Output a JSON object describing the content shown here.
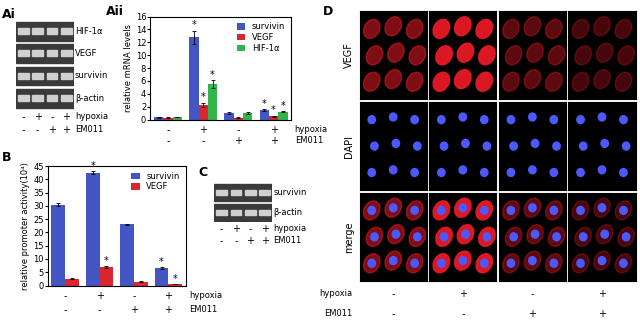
{
  "chart_data": [
    {
      "type": "bar",
      "title": "Aii",
      "categories": [
        null,
        null,
        null,
        null
      ],
      "conditions": [
        {
          "name": "hypoxia",
          "values": [
            "-",
            "+",
            "-",
            "+"
          ]
        },
        {
          "name": "EM011",
          "values": [
            "-",
            "-",
            "+",
            "+"
          ]
        }
      ],
      "y_label": "relative mRNA levels",
      "ylim": [
        0,
        16
      ],
      "yticks": [
        0,
        2,
        4,
        6,
        8,
        10,
        12,
        14,
        16
      ],
      "legend": "upper right",
      "series": [
        {
          "name": "survivin",
          "color": "#4455c4",
          "values": [
            0.35,
            12.8,
            1.0,
            1.5
          ],
          "errors": [
            0.05,
            1.0,
            0.1,
            0.15
          ]
        },
        {
          "name": "VEGF",
          "color": "#d9262f",
          "values": [
            0.3,
            2.3,
            0.3,
            0.5
          ],
          "errors": [
            0.05,
            0.3,
            0.05,
            0.1
          ]
        },
        {
          "name": "HIF-1α",
          "color": "#33b44a",
          "values": [
            0.4,
            5.5,
            1.0,
            1.2
          ],
          "errors": [
            0.05,
            0.6,
            0.1,
            0.1
          ]
        }
      ],
      "annotations": [
        {
          "series": "survivin",
          "index": 1,
          "text": "*"
        },
        {
          "series": "VEGF",
          "index": 1,
          "text": "*"
        },
        {
          "series": "HIF-1α",
          "index": 1,
          "text": "*"
        },
        {
          "series": "survivin",
          "index": 3,
          "text": "*"
        },
        {
          "series": "VEGF",
          "index": 3,
          "text": "*"
        },
        {
          "series": "HIF-1α",
          "index": 3,
          "text": "*"
        }
      ]
    },
    {
      "type": "bar",
      "title": "B",
      "categories": [
        null,
        null,
        null,
        null
      ],
      "conditions": [
        {
          "name": "hypoxia",
          "values": [
            "-",
            "+",
            "-",
            "+"
          ]
        },
        {
          "name": "EM011",
          "values": [
            "-",
            "-",
            "+",
            "+"
          ]
        }
      ],
      "y_label": "relative promoter activity(10⁴)",
      "ylim": [
        0,
        45
      ],
      "yticks": [
        0,
        5,
        10,
        15,
        20,
        25,
        30,
        35,
        40,
        45
      ],
      "legend": "upper right",
      "series": [
        {
          "name": "survivin",
          "color": "#4455c4",
          "values": [
            30.5,
            42.5,
            23.0,
            6.5
          ],
          "errors": [
            0.4,
            0.6,
            0.3,
            0.4
          ]
        },
        {
          "name": "VEGF",
          "color": "#d9262f",
          "values": [
            2.5,
            7.0,
            1.5,
            0.5
          ],
          "errors": [
            0.2,
            0.4,
            0.2,
            0.1
          ]
        }
      ],
      "annotations": [
        {
          "series": "survivin",
          "index": 1,
          "text": "*"
        },
        {
          "series": "VEGF",
          "index": 1,
          "text": "*"
        },
        {
          "series": "survivin",
          "index": 3,
          "text": "*"
        },
        {
          "series": "VEGF",
          "index": 3,
          "text": "*"
        }
      ]
    }
  ],
  "panels": {
    "Ai": {
      "title": "Ai",
      "rows": [
        "HIF-1α",
        "VEGF",
        "survivin",
        "β-actin"
      ],
      "conditions": [
        {
          "name": "hypoxia",
          "values": [
            "-",
            "+",
            "-",
            "+"
          ]
        },
        {
          "name": "EM011",
          "values": [
            "-",
            "-",
            "+",
            "+"
          ]
        }
      ]
    },
    "C": {
      "title": "C",
      "rows": [
        "survivin",
        "β-actin"
      ],
      "conditions": [
        {
          "name": "hypoxia",
          "values": [
            "-",
            "+",
            "-",
            "+"
          ]
        },
        {
          "name": "EM011",
          "values": [
            "-",
            "-",
            "+",
            "+"
          ]
        }
      ]
    },
    "D": {
      "title": "D",
      "rows": [
        "VEGF",
        "DAPI",
        "merge"
      ],
      "conditions": [
        {
          "name": "hypoxia",
          "values": [
            "-",
            "+",
            "-",
            "+"
          ]
        },
        {
          "name": "EM011",
          "values": [
            "-",
            "-",
            "+",
            "+"
          ]
        }
      ]
    }
  }
}
